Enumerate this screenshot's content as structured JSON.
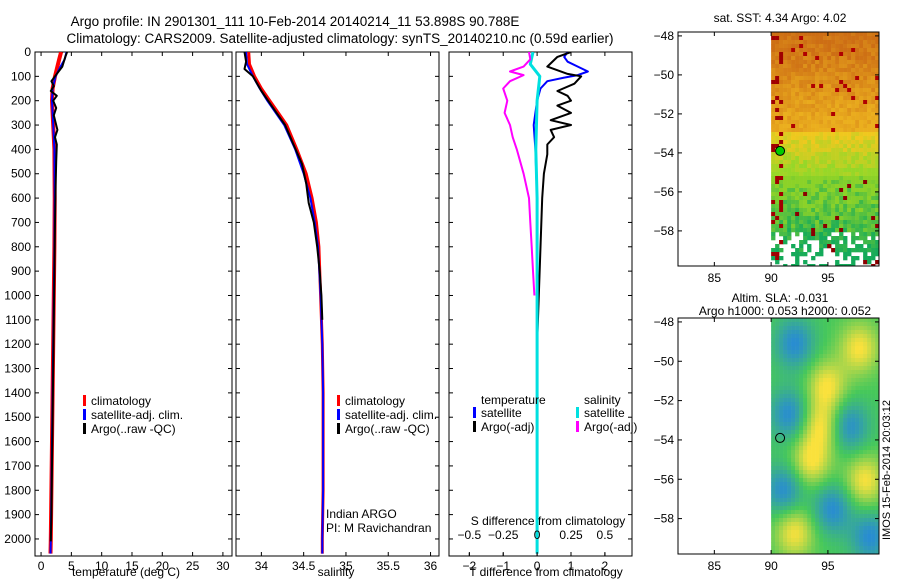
{
  "header": {
    "title_line1": "Argo profile: IN 2901301_111 10-Feb-2014 20140214_11 53.898S 90.788E",
    "title_line2": "Climatology: CARS2009. Satellite-adjusted climatology: synTS_20140210.nc (0.59d earlier)"
  },
  "colors": {
    "climatology": "#ff0000",
    "satellite": "#0000ff",
    "argo": "#000000",
    "sat_salinity": "#00e0e0",
    "argo_salinity": "#ff00ff",
    "marker": "#00cc00"
  },
  "credit": {
    "line1": "Indian ARGO",
    "line2": "PI: M Ravichandran"
  },
  "watermark": "IMOS 15-Feb-2014 20:03:12",
  "chart_data": [
    {
      "id": "temperature",
      "type": "line",
      "xlabel": "temperature (deg C)",
      "ylabel": "",
      "xlim": [
        -1,
        31.5
      ],
      "ylim": [
        2070,
        0
      ],
      "xticks": [
        0,
        5,
        10,
        15,
        20,
        25,
        30
      ],
      "yticks": [
        0,
        100,
        200,
        300,
        400,
        500,
        600,
        700,
        800,
        900,
        1000,
        1100,
        1200,
        1300,
        1400,
        1500,
        1600,
        1700,
        1800,
        1900,
        2000
      ],
      "legend": {
        "position": "center-left",
        "entries": [
          "climatology",
          "satellite-adj. clim.",
          "Argo(..raw -QC)"
        ]
      },
      "series": [
        {
          "name": "climatology",
          "color": "#ff0000",
          "width": 4,
          "points": [
            [
              3.3,
              0
            ],
            [
              3.0,
              30
            ],
            [
              2.7,
              60
            ],
            [
              2.3,
              100
            ],
            [
              1.9,
              150
            ],
            [
              1.8,
              200
            ],
            [
              2.0,
              300
            ],
            [
              2.2,
              400
            ],
            [
              2.25,
              600
            ],
            [
              2.2,
              800
            ],
            [
              2.1,
              1000
            ],
            [
              2.0,
              1200
            ],
            [
              1.9,
              1400
            ],
            [
              1.8,
              1600
            ],
            [
              1.7,
              1800
            ],
            [
              1.6,
              2000
            ],
            [
              1.55,
              2060
            ]
          ]
        },
        {
          "name": "satellite-adj. clim.",
          "color": "#0000ff",
          "width": 2,
          "points": [
            [
              4.2,
              0
            ],
            [
              3.9,
              30
            ],
            [
              3.2,
              60
            ],
            [
              2.4,
              100
            ],
            [
              1.9,
              150
            ],
            [
              1.8,
              200
            ],
            [
              2.0,
              300
            ],
            [
              2.2,
              400
            ],
            [
              2.25,
              600
            ],
            [
              2.2,
              800
            ],
            [
              2.1,
              1000
            ],
            [
              2.0,
              1200
            ],
            [
              1.9,
              1400
            ],
            [
              1.8,
              1600
            ],
            [
              1.7,
              1800
            ],
            [
              1.6,
              2000
            ],
            [
              1.55,
              2060
            ]
          ]
        },
        {
          "name": "Argo(..raw -QC)",
          "color": "#000000",
          "width": 2,
          "points": [
            [
              4.3,
              0
            ],
            [
              4.0,
              20
            ],
            [
              3.5,
              60
            ],
            [
              2.3,
              100
            ],
            [
              1.7,
              120
            ],
            [
              2.1,
              140
            ],
            [
              1.6,
              160
            ],
            [
              2.6,
              180
            ],
            [
              2.0,
              200
            ],
            [
              2.5,
              230
            ],
            [
              2.1,
              260
            ],
            [
              2.4,
              290
            ],
            [
              2.7,
              320
            ],
            [
              2.3,
              350
            ],
            [
              2.6,
              380
            ],
            [
              2.5,
              450
            ],
            [
              2.4,
              550
            ],
            [
              2.3,
              700
            ],
            [
              2.2,
              900
            ],
            [
              2.1,
              1100
            ],
            [
              2.0,
              1300
            ],
            [
              1.9,
              1500
            ],
            [
              1.8,
              1700
            ],
            [
              1.7,
              1900
            ],
            [
              1.6,
              2010
            ]
          ]
        }
      ]
    },
    {
      "id": "salinity",
      "type": "line",
      "xlabel": "salinity",
      "ylabel": "",
      "xlim": [
        33.7,
        36.1
      ],
      "ylim": [
        2070,
        0
      ],
      "xticks": [
        34,
        34.5,
        35,
        35.5,
        36
      ],
      "legend": {
        "position": "center-right",
        "entries": [
          "climatology",
          "satellite-adj. clim.",
          "Argo(..raw -QC)"
        ]
      },
      "series": [
        {
          "name": "climatology",
          "color": "#ff0000",
          "width": 3,
          "points": [
            [
              33.85,
              0
            ],
            [
              33.86,
              50
            ],
            [
              33.92,
              100
            ],
            [
              34.0,
              150
            ],
            [
              34.1,
              200
            ],
            [
              34.2,
              250
            ],
            [
              34.3,
              300
            ],
            [
              34.42,
              400
            ],
            [
              34.53,
              500
            ],
            [
              34.6,
              600
            ],
            [
              34.65,
              700
            ],
            [
              34.68,
              800
            ],
            [
              34.7,
              1000
            ],
            [
              34.72,
              1200
            ],
            [
              34.73,
              1400
            ],
            [
              34.73,
              1600
            ],
            [
              34.73,
              1800
            ],
            [
              34.72,
              2000
            ],
            [
              34.72,
              2060
            ]
          ]
        },
        {
          "name": "satellite-adj. clim.",
          "color": "#0000ff",
          "width": 2,
          "points": [
            [
              33.82,
              0
            ],
            [
              33.83,
              50
            ],
            [
              33.9,
              100
            ],
            [
              33.98,
              150
            ],
            [
              34.07,
              200
            ],
            [
              34.17,
              250
            ],
            [
              34.27,
              300
            ],
            [
              34.4,
              400
            ],
            [
              34.5,
              500
            ],
            [
              34.58,
              600
            ],
            [
              34.63,
              700
            ],
            [
              34.67,
              800
            ],
            [
              34.7,
              1000
            ],
            [
              34.72,
              1200
            ],
            [
              34.73,
              1400
            ],
            [
              34.73,
              1600
            ],
            [
              34.73,
              1800
            ],
            [
              34.72,
              2000
            ],
            [
              34.72,
              2060
            ]
          ]
        },
        {
          "name": "Argo(..raw -QC)",
          "color": "#000000",
          "width": 2,
          "points": [
            [
              33.8,
              0
            ],
            [
              33.82,
              40
            ],
            [
              33.8,
              70
            ],
            [
              33.9,
              100
            ],
            [
              34.0,
              160
            ],
            [
              34.08,
              200
            ],
            [
              34.18,
              250
            ],
            [
              34.28,
              300
            ],
            [
              34.38,
              380
            ],
            [
              34.48,
              460
            ],
            [
              34.53,
              540
            ],
            [
              34.56,
              620
            ],
            [
              34.62,
              700
            ],
            [
              34.66,
              800
            ],
            [
              34.69,
              900
            ],
            [
              34.71,
              1000
            ],
            [
              34.72,
              1100
            ]
          ]
        }
      ]
    },
    {
      "id": "difference",
      "type": "line",
      "xlabel": "T difference from climatology",
      "xlabel_top": "S difference from climatology",
      "xlim": [
        -2.6,
        2.8
      ],
      "ylim": [
        2070,
        0
      ],
      "xticks": [
        -2,
        -1,
        0,
        1,
        2
      ],
      "xticks_s": [
        {
          "v": -0.5,
          "t": "−0.5"
        },
        {
          "v": -0.25,
          "t": "−0.25"
        },
        {
          "v": 0,
          "t": "0"
        },
        {
          "v": 0.25,
          "t": "0.25"
        },
        {
          "v": 0.5,
          "t": "0.5"
        }
      ],
      "legend": {
        "position": "center",
        "temperature_title": "temperature",
        "salinity_title": "salinity",
        "entries": [
          "satellite",
          "Argo(-adj)",
          "satellite",
          "Argo(-adj)"
        ]
      },
      "series": [
        {
          "name": "satellite",
          "group": "temperature",
          "color": "#0000ff",
          "width": 2,
          "points": [
            [
              0.9,
              0
            ],
            [
              0.8,
              20
            ],
            [
              0.9,
              40
            ],
            [
              1.2,
              60
            ],
            [
              1.5,
              80
            ],
            [
              1.2,
              95
            ],
            [
              0.8,
              105
            ],
            [
              0.3,
              120
            ],
            [
              0.1,
              150
            ],
            [
              0.0,
              200
            ],
            [
              -0.1,
              300
            ],
            [
              -0.05,
              400
            ],
            [
              0.0,
              600
            ],
            [
              0.0,
              1000
            ],
            [
              0.0,
              1500
            ],
            [
              0.0,
              2060
            ]
          ]
        },
        {
          "name": "Argo(-adj)",
          "group": "temperature",
          "color": "#000000",
          "width": 2,
          "points": [
            [
              1.0,
              0
            ],
            [
              0.6,
              20
            ],
            [
              0.3,
              60
            ],
            [
              0.9,
              90
            ],
            [
              1.3,
              100
            ],
            [
              1.1,
              130
            ],
            [
              0.6,
              160
            ],
            [
              0.9,
              180
            ],
            [
              1.0,
              200
            ],
            [
              0.6,
              220
            ],
            [
              1.0,
              250
            ],
            [
              0.4,
              280
            ],
            [
              1.0,
              300
            ],
            [
              0.4,
              320
            ],
            [
              0.5,
              350
            ],
            [
              0.3,
              380
            ],
            [
              0.3,
              420
            ],
            [
              0.2,
              500
            ],
            [
              0.15,
              600
            ],
            [
              0.1,
              800
            ],
            [
              0.05,
              1000
            ],
            [
              0.0,
              1200
            ],
            [
              0.0,
              1500
            ],
            [
              0.0,
              1800
            ],
            [
              0.0,
              2000
            ]
          ]
        },
        {
          "name": "satellite",
          "group": "salinity",
          "color": "#00e0e0",
          "width": 3,
          "points": [
            [
              -0.03,
              0
            ],
            [
              -0.05,
              50
            ],
            [
              0.02,
              100
            ],
            [
              0.0,
              200
            ],
            [
              -0.01,
              400
            ],
            [
              0.0,
              600
            ],
            [
              0.0,
              1000
            ],
            [
              0.0,
              1500
            ],
            [
              0.0,
              2060
            ]
          ]
        },
        {
          "name": "Argo(-adj)",
          "group": "salinity",
          "color": "#ff00ff",
          "width": 2,
          "points": [
            [
              -0.06,
              0
            ],
            [
              -0.05,
              30
            ],
            [
              -0.1,
              60
            ],
            [
              -0.2,
              80
            ],
            [
              -0.1,
              95
            ],
            [
              -0.2,
              120
            ],
            [
              -0.25,
              150
            ],
            [
              -0.22,
              200
            ],
            [
              -0.24,
              250
            ],
            [
              -0.2,
              300
            ],
            [
              -0.18,
              350
            ],
            [
              -0.15,
              400
            ],
            [
              -0.1,
              500
            ],
            [
              -0.06,
              600
            ],
            [
              -0.05,
              700
            ],
            [
              -0.04,
              800
            ],
            [
              -0.03,
              900
            ],
            [
              -0.02,
              1000
            ]
          ]
        }
      ]
    },
    {
      "id": "sst_map",
      "type": "heatmap",
      "title": "sat. SST: 4.34 Argo: 4.02",
      "xlim": [
        81.8,
        99.5
      ],
      "ylim": [
        -59.8,
        -47.8
      ],
      "xticks": [
        85,
        90,
        95
      ],
      "yticks": [
        -48,
        -50,
        -52,
        -54,
        -56,
        -58
      ],
      "marker": {
        "lon": 90.788,
        "lat": -53.898
      }
    },
    {
      "id": "sla_map",
      "type": "heatmap",
      "title_line1": "Altim. SLA: -0.031",
      "title_line2": "Argo h1000: 0.053 h2000: 0.052",
      "xlim": [
        81.8,
        99.5
      ],
      "ylim": [
        -59.8,
        -47.8
      ],
      "xticks": [
        85,
        90,
        95
      ],
      "yticks": [
        -48,
        -50,
        -52,
        -54,
        -56,
        -58
      ],
      "marker": {
        "lon": 90.788,
        "lat": -53.898
      }
    }
  ]
}
